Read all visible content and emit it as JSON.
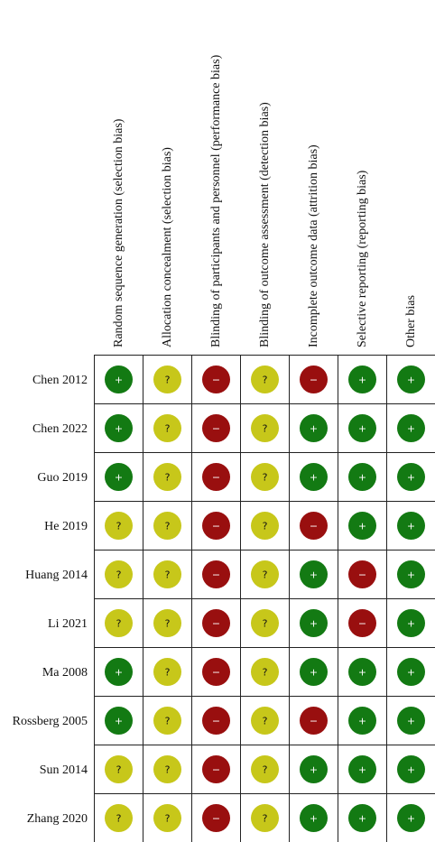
{
  "chart_data": {
    "type": "table",
    "domains": [
      "Random sequence generation (selection bias)",
      "Allocation concealment (selection bias)",
      "Blinding of participants and personnel (performance bias)",
      "Blinding of outcome assessment (detection bias)",
      "Incomplete outcome data (attrition bias)",
      "Selective reporting (reporting bias)",
      "Other bias"
    ],
    "studies": [
      "Chen 2012",
      "Chen 2022",
      "Guo 2019",
      "He 2019",
      "Huang 2014",
      "Li 2021",
      "Ma 2008",
      "Rossberg 2005",
      "Sun 2014",
      "Zhang 2020"
    ],
    "judgements": [
      [
        "+",
        "?",
        "−",
        "?",
        "−",
        "+",
        "+"
      ],
      [
        "+",
        "?",
        "−",
        "?",
        "+",
        "+",
        "+"
      ],
      [
        "+",
        "?",
        "−",
        "?",
        "+",
        "+",
        "+"
      ],
      [
        "?",
        "?",
        "−",
        "?",
        "−",
        "+",
        "+"
      ],
      [
        "?",
        "?",
        "−",
        "?",
        "+",
        "−",
        "+"
      ],
      [
        "?",
        "?",
        "−",
        "?",
        "+",
        "−",
        "+"
      ],
      [
        "+",
        "?",
        "−",
        "?",
        "+",
        "+",
        "+"
      ],
      [
        "+",
        "?",
        "−",
        "?",
        "−",
        "+",
        "+"
      ],
      [
        "?",
        "?",
        "−",
        "?",
        "+",
        "+",
        "+"
      ],
      [
        "?",
        "?",
        "−",
        "?",
        "+",
        "+",
        "+"
      ]
    ],
    "colors": {
      "+": "#137a13",
      "?": "#c7c71a",
      "−": "#990f0f"
    }
  }
}
